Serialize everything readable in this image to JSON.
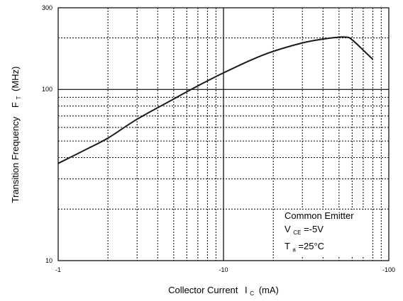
{
  "chart_data": {
    "type": "line",
    "x_scale": "log",
    "y_scale": "log",
    "xlim": [
      -1,
      -100
    ],
    "ylim": [
      10,
      300
    ],
    "x_ticks": [
      "-1",
      "-10",
      "-100"
    ],
    "y_ticks": [
      "10",
      "100",
      "300"
    ],
    "ylabel_main": "Transition Frequency",
    "ylabel_symbol": "F",
    "ylabel_subscript": "T",
    "ylabel_unit": "(MHz)",
    "xlabel_main": "Collector Current",
    "xlabel_symbol": "I",
    "xlabel_subscript": "C",
    "xlabel_unit": "(mA)",
    "grid": true,
    "annotations": {
      "line1": "Common Emitter",
      "line2_symbol": "V",
      "line2_subscript": "CE",
      "line2_value": "=-5V",
      "line3_symbol": "T",
      "line3_subscript": "a",
      "line3_value": "=25°C"
    },
    "series": [
      {
        "x": [
          -1,
          -1.5,
          -2,
          -3,
          -5,
          -7,
          -10,
          -15,
          -20,
          -30,
          -40,
          -50,
          -55,
          -60,
          -80
        ],
        "y": [
          37,
          45,
          52,
          67,
          88,
          105,
          125,
          150,
          167,
          187,
          197,
          202,
          202,
          195,
          150
        ]
      }
    ]
  }
}
